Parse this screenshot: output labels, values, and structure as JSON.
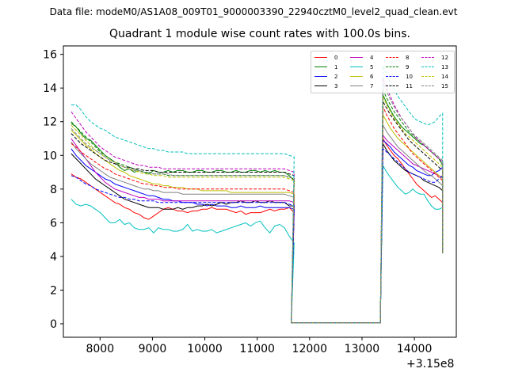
{
  "header": {
    "suptitle": "Data file: modeM0/AS1A08_009T01_9000003390_22940cztM0_level2_quad_clean.evt",
    "title": "Quadrant 1 module wise count rates with 100.0s bins."
  },
  "chart_data": {
    "type": "line",
    "title": "Quadrant 1 module wise count rates with 100.0s bins.",
    "xlabel": "",
    "ylabel": "",
    "x_offset_label": "+3.15e8",
    "xlim": [
      7300,
      14800
    ],
    "ylim": [
      -0.8,
      16.5
    ],
    "xticks": [
      8000,
      9000,
      10000,
      11000,
      12000,
      13000,
      14000
    ],
    "yticks": [
      0,
      2,
      4,
      6,
      8,
      10,
      12,
      14,
      16
    ],
    "legend_position": "top-right",
    "series": [
      {
        "name": "0",
        "color": "#ff0000",
        "style": "solid",
        "seg1": [
          8.9,
          8.7,
          8.6,
          8.4,
          8.2,
          8.0,
          7.8,
          7.6,
          7.4,
          7.2,
          7.1,
          6.9,
          6.8,
          6.6,
          6.5,
          6.3,
          6.2,
          6.4,
          6.6,
          6.8,
          6.9,
          6.8,
          6.7,
          6.7,
          6.6,
          6.7,
          6.7,
          6.8,
          6.8,
          6.9,
          6.8,
          6.8,
          6.8,
          6.7,
          6.6,
          6.7,
          6.5,
          6.6,
          6.6,
          6.6,
          6.7,
          6.8,
          6.7,
          6.8,
          6.8,
          6.9,
          6.6
        ],
        "seg2": [
          11.0,
          10.6,
          10.3,
          10.0,
          9.8,
          9.5,
          9.2,
          8.9,
          8.6,
          8.3,
          8.1,
          7.9,
          7.7,
          7.5,
          7.6,
          7.4,
          7.2
        ]
      },
      {
        "name": "1",
        "color": "#008000",
        "style": "solid",
        "seg1": [
          11.9,
          11.7,
          11.3,
          11.0,
          10.9,
          10.6,
          10.3,
          10.0,
          9.8,
          9.6,
          9.3,
          9.1,
          9.2,
          9.0,
          9.1,
          9.0,
          8.9,
          9.1,
          9.0,
          9.0,
          9.1,
          9.0,
          9.1,
          9.1,
          9.0,
          9.0,
          9.1,
          9.1,
          9.0,
          9.0,
          9.1,
          9.1,
          9.0,
          9.0,
          9.1,
          9.0,
          9.0,
          9.1,
          9.1,
          9.0,
          9.1,
          9.0,
          9.1,
          9.0,
          9.0,
          8.8,
          8.5
        ],
        "seg2": [
          13.6,
          13.1,
          12.7,
          12.3,
          12.0,
          11.7,
          11.5,
          11.3,
          11.1,
          10.9,
          10.7,
          10.6,
          10.4,
          10.2,
          10.0,
          9.8,
          9.4
        ]
      },
      {
        "name": "2",
        "color": "#0000ff",
        "style": "solid",
        "seg1": [
          10.4,
          10.0,
          9.7,
          9.4,
          9.2,
          9.0,
          8.8,
          8.6,
          8.5,
          8.3,
          8.2,
          8.1,
          8.0,
          7.9,
          7.8,
          7.7,
          7.6,
          7.6,
          7.5,
          7.4,
          7.4,
          7.3,
          7.3,
          7.2,
          7.2,
          7.2,
          7.1,
          7.1,
          7.0,
          7.1,
          7.0,
          7.0,
          7.0,
          6.9,
          6.9,
          7.0,
          6.9,
          6.9,
          6.9,
          7.0,
          6.9,
          6.9,
          6.9,
          6.9,
          6.9,
          6.9,
          6.8
        ],
        "seg2": [
          10.9,
          10.7,
          10.5,
          10.2,
          10.0,
          9.8,
          9.6,
          9.4,
          9.3,
          9.1,
          9.0,
          8.9,
          8.8,
          8.8,
          9.0,
          9.1,
          9.3
        ]
      },
      {
        "name": "3",
        "color": "#000000",
        "style": "solid",
        "seg1": [
          10.1,
          9.8,
          9.5,
          9.2,
          8.9,
          8.6,
          8.4,
          8.2,
          8.0,
          7.8,
          7.6,
          7.4,
          7.3,
          7.2,
          7.1,
          7.0,
          6.9,
          6.9,
          6.9,
          6.8,
          6.8,
          6.8,
          6.9,
          6.8,
          6.9,
          6.9,
          7.0,
          7.0,
          7.1,
          7.0,
          7.1,
          7.2,
          7.1,
          7.2,
          7.2,
          7.3,
          7.2,
          7.2,
          7.3,
          7.2,
          7.2,
          7.3,
          7.2,
          7.2,
          7.2,
          7.0,
          7.0
        ],
        "seg2": [
          10.7,
          10.3,
          10.0,
          9.7,
          9.5,
          9.3,
          9.1,
          9.0,
          8.9,
          8.8,
          8.7,
          8.5,
          8.4,
          8.3,
          8.2,
          8.1,
          7.9
        ]
      },
      {
        "name": "4",
        "color": "#bf00bf",
        "style": "solid",
        "seg1": [
          11.0,
          10.6,
          10.2,
          9.8,
          9.4,
          9.0,
          8.7,
          8.4,
          8.2,
          8.0,
          7.9,
          7.8,
          7.7,
          7.6,
          7.5,
          7.5,
          7.4,
          7.4,
          7.4,
          7.3,
          7.3,
          7.3,
          7.3,
          7.3,
          7.3,
          7.3,
          7.3,
          7.3,
          7.3,
          7.3,
          7.3,
          7.3,
          7.3,
          7.3,
          7.3,
          7.3,
          7.3,
          7.3,
          7.3,
          7.3,
          7.3,
          7.3,
          7.3,
          7.3,
          7.3,
          7.3,
          7.2
        ],
        "seg2": [
          11.2,
          10.9,
          10.7,
          10.5,
          10.3,
          10.1,
          9.9,
          9.7,
          9.5,
          9.4,
          9.3,
          9.2,
          9.1,
          9.0,
          8.9,
          8.8,
          8.7
        ]
      },
      {
        "name": "5",
        "color": "#00bfbf",
        "style": "solid",
        "seg1": [
          7.4,
          7.1,
          7.0,
          7.1,
          7.0,
          6.8,
          6.6,
          6.3,
          6.0,
          6.0,
          6.2,
          5.9,
          6.0,
          5.7,
          5.6,
          5.6,
          5.7,
          5.4,
          5.7,
          5.6,
          5.6,
          5.5,
          5.5,
          5.6,
          5.9,
          5.5,
          5.6,
          5.5,
          5.5,
          5.6,
          5.4,
          5.5,
          5.6,
          5.7,
          5.8,
          5.9,
          6.0,
          5.8,
          6.0,
          6.1,
          5.7,
          5.4,
          5.8,
          5.9,
          5.7,
          5.2,
          4.8
        ],
        "seg2": [
          9.4,
          9.0,
          8.7,
          8.4,
          8.1,
          7.9,
          7.7,
          7.8,
          8.0,
          7.8,
          7.7,
          7.7,
          7.3,
          7.0,
          6.8,
          6.8,
          6.9
        ]
      },
      {
        "name": "6",
        "color": "#bfbf00",
        "style": "solid",
        "seg1": [
          11.5,
          11.2,
          10.9,
          10.6,
          10.4,
          10.1,
          9.9,
          9.7,
          9.5,
          9.3,
          9.1,
          9.0,
          8.8,
          8.7,
          8.6,
          8.5,
          8.4,
          8.3,
          8.3,
          8.2,
          8.2,
          8.1,
          8.1,
          8.1,
          8.0,
          8.0,
          8.0,
          7.9,
          7.9,
          7.9,
          7.9,
          7.9,
          7.9,
          7.8,
          7.8,
          7.8,
          7.8,
          7.8,
          7.8,
          7.8,
          7.8,
          7.8,
          7.8,
          7.8,
          7.8,
          7.8,
          7.7
        ],
        "seg2": [
          12.4,
          12.0,
          11.6,
          11.3,
          11.0,
          10.8,
          10.6,
          10.4,
          10.2,
          10.0,
          9.8,
          9.6,
          9.4,
          9.2,
          9.0,
          8.8,
          8.6
        ]
      },
      {
        "name": "7",
        "color": "#808080",
        "style": "solid",
        "seg1": [
          10.8,
          10.4,
          10.1,
          9.8,
          9.5,
          9.3,
          9.1,
          8.9,
          8.7,
          8.6,
          8.5,
          8.4,
          8.3,
          8.2,
          8.1,
          8.0,
          8.0,
          7.9,
          7.9,
          7.8,
          7.8,
          7.8,
          7.8,
          7.7,
          7.7,
          7.7,
          7.7,
          7.7,
          7.7,
          7.7,
          7.7,
          7.7,
          7.7,
          7.7,
          7.7,
          7.7,
          7.7,
          7.7,
          7.7,
          7.7,
          7.7,
          7.7,
          7.7,
          7.7,
          7.7,
          7.6,
          7.5
        ],
        "seg2": [
          11.8,
          11.4,
          11.1,
          10.8,
          10.5,
          10.3,
          10.1,
          9.9,
          9.7,
          9.5,
          9.3,
          9.1,
          8.9,
          8.8,
          8.6,
          8.4,
          8.2
        ]
      },
      {
        "name": "8",
        "color": "#ff0000",
        "style": "dashed",
        "seg1": [
          10.7,
          10.5,
          10.2,
          10.0,
          9.8,
          9.6,
          9.4,
          9.2,
          9.1,
          8.9,
          8.8,
          8.7,
          8.6,
          8.5,
          8.4,
          8.3,
          8.3,
          8.2,
          8.2,
          8.1,
          8.1,
          8.1,
          8.0,
          8.0,
          8.0,
          8.0,
          8.0,
          8.0,
          8.0,
          8.0,
          8.0,
          8.0,
          8.0,
          8.0,
          8.0,
          8.0,
          8.0,
          8.0,
          8.0,
          8.0,
          8.0,
          8.0,
          8.0,
          8.0,
          8.0,
          7.9,
          7.8
        ],
        "seg2": [
          12.9,
          12.4,
          12.0,
          11.6,
          11.3,
          11.0,
          10.7,
          10.4,
          10.1,
          9.9,
          9.7,
          9.5,
          9.3,
          9.1,
          8.9,
          8.7,
          8.5
        ]
      },
      {
        "name": "9",
        "color": "#008000",
        "style": "dashed",
        "seg1": [
          12.0,
          11.7,
          11.4,
          11.1,
          10.8,
          10.5,
          10.2,
          10.0,
          9.8,
          9.6,
          9.5,
          9.4,
          9.3,
          9.2,
          9.1,
          9.0,
          9.0,
          8.9,
          8.9,
          8.9,
          8.8,
          8.8,
          8.8,
          8.8,
          8.8,
          8.8,
          8.8,
          8.8,
          8.8,
          8.8,
          8.8,
          8.8,
          8.8,
          8.8,
          8.8,
          8.8,
          8.8,
          8.8,
          8.8,
          8.8,
          8.8,
          8.8,
          8.8,
          8.8,
          8.8,
          8.7,
          8.6
        ],
        "seg2": [
          13.9,
          13.4,
          13.0,
          12.6,
          12.3,
          12.0,
          11.7,
          11.4,
          11.2,
          11.0,
          10.8,
          10.6,
          10.4,
          10.2,
          10.0,
          9.8,
          9.6
        ]
      },
      {
        "name": "10",
        "color": "#0000ff",
        "style": "dashed",
        "seg1": [
          8.8,
          8.7,
          8.5,
          8.3,
          8.2,
          8.0,
          7.9,
          7.8,
          7.7,
          7.6,
          7.5,
          7.5,
          7.4,
          7.4,
          7.3,
          7.3,
          7.3,
          7.3,
          7.2,
          7.2,
          7.2,
          7.2,
          7.2,
          7.2,
          7.2,
          7.2,
          7.2,
          7.2,
          7.2,
          7.2,
          7.2,
          7.2,
          7.2,
          7.2,
          7.2,
          7.2,
          7.2,
          7.2,
          7.2,
          7.2,
          7.2,
          7.2,
          7.2,
          7.2,
          7.2,
          7.1,
          7.0
        ],
        "seg2": [
          10.4,
          10.2,
          10.0,
          9.8,
          9.6,
          9.4,
          9.2,
          9.0,
          8.9,
          8.8,
          8.7,
          8.6,
          8.5,
          8.4,
          8.4,
          8.6,
          8.8
        ]
      },
      {
        "name": "11",
        "color": "#000000",
        "style": "dashed",
        "seg1": [
          11.3,
          11.0,
          10.7,
          10.5,
          10.3,
          10.1,
          9.9,
          9.7,
          9.6,
          9.5,
          9.4,
          9.3,
          9.3,
          9.2,
          9.2,
          9.1,
          9.1,
          9.1,
          9.0,
          9.0,
          9.0,
          9.0,
          9.0,
          9.0,
          9.0,
          9.0,
          9.0,
          9.0,
          9.0,
          9.0,
          9.0,
          9.0,
          9.0,
          9.0,
          9.0,
          9.0,
          9.0,
          9.0,
          9.0,
          9.0,
          9.0,
          9.0,
          9.0,
          9.0,
          9.0,
          8.9,
          8.8
        ],
        "seg2": [
          13.2,
          12.8,
          12.4,
          12.1,
          11.8,
          11.5,
          11.2,
          10.9,
          10.7,
          10.5,
          10.3,
          10.1,
          9.9,
          9.7,
          9.5,
          9.3,
          9.1
        ]
      },
      {
        "name": "12",
        "color": "#bf00bf",
        "style": "dashed",
        "seg1": [
          12.6,
          12.2,
          11.8,
          11.4,
          11.1,
          10.8,
          10.5,
          10.3,
          10.1,
          9.9,
          9.8,
          9.7,
          9.6,
          9.5,
          9.4,
          9.4,
          9.3,
          9.3,
          9.3,
          9.2,
          9.2,
          9.2,
          9.2,
          9.2,
          9.2,
          9.2,
          9.2,
          9.2,
          9.2,
          9.2,
          9.2,
          9.2,
          9.2,
          9.2,
          9.2,
          9.2,
          9.2,
          9.2,
          9.2,
          9.2,
          9.2,
          9.2,
          9.2,
          9.2,
          9.2,
          9.1,
          9.0
        ],
        "seg2": [
          14.6,
          14.0,
          13.5,
          13.0,
          12.6,
          12.2,
          11.9,
          11.6,
          11.3,
          11.0,
          10.8,
          10.6,
          10.4,
          10.2,
          10.0,
          9.8,
          9.6
        ]
      },
      {
        "name": "13",
        "color": "#00bfbf",
        "style": "dashed",
        "seg1": [
          13.0,
          13.0,
          12.7,
          12.3,
          12.0,
          11.8,
          11.6,
          11.5,
          11.3,
          11.1,
          11.0,
          10.9,
          10.8,
          10.7,
          10.6,
          10.5,
          10.4,
          10.4,
          10.3,
          10.3,
          10.2,
          10.2,
          10.2,
          10.2,
          10.1,
          10.1,
          10.1,
          10.1,
          10.1,
          10.1,
          10.1,
          10.1,
          10.1,
          10.1,
          10.1,
          10.1,
          10.1,
          10.1,
          10.1,
          10.1,
          10.1,
          10.1,
          10.1,
          10.1,
          10.1,
          10.0,
          9.9
        ],
        "seg2": [
          15.3,
          14.8,
          14.3,
          13.9,
          13.5,
          13.2,
          12.9,
          12.6,
          12.3,
          12.1,
          12.0,
          11.9,
          11.8,
          11.9,
          12.0,
          12.3,
          12.5
        ]
      },
      {
        "name": "14",
        "color": "#bfbf00",
        "style": "dashed",
        "seg1": [
          11.8,
          11.5,
          11.2,
          10.9,
          10.6,
          10.3,
          10.1,
          9.9,
          9.7,
          9.6,
          9.4,
          9.3,
          9.2,
          9.1,
          9.0,
          8.9,
          8.9,
          8.8,
          8.8,
          8.8,
          8.7,
          8.7,
          8.7,
          8.7,
          8.7,
          8.7,
          8.7,
          8.7,
          8.7,
          8.7,
          8.7,
          8.7,
          8.7,
          8.7,
          8.7,
          8.7,
          8.7,
          8.7,
          8.7,
          8.7,
          8.7,
          8.7,
          8.7,
          8.7,
          8.7,
          8.6,
          8.5
        ],
        "seg2": [
          13.5,
          13.0,
          12.6,
          12.2,
          11.9,
          11.6,
          11.3,
          11.1,
          10.9,
          10.7,
          10.5,
          10.3,
          10.1,
          9.9,
          9.7,
          9.5,
          9.3
        ]
      },
      {
        "name": "15",
        "color": "#808080",
        "style": "dashed",
        "seg1": [
          11.6,
          11.3,
          11.0,
          10.7,
          10.5,
          10.3,
          10.1,
          9.9,
          9.7,
          9.6,
          9.4,
          9.3,
          9.2,
          9.1,
          9.1,
          9.0,
          9.0,
          8.9,
          8.9,
          8.9,
          8.9,
          8.8,
          8.8,
          8.8,
          8.8,
          8.8,
          8.8,
          8.8,
          8.8,
          8.8,
          8.8,
          8.8,
          8.8,
          8.8,
          8.8,
          8.8,
          8.8,
          8.8,
          8.8,
          8.8,
          8.8,
          8.8,
          8.8,
          8.8,
          8.8,
          8.7,
          8.6
        ],
        "seg2": [
          14.3,
          13.8,
          13.3,
          12.9,
          12.5,
          12.2,
          11.9,
          11.6,
          11.3,
          11.1,
          10.9,
          10.7,
          10.5,
          10.3,
          10.1,
          9.9,
          9.7
        ]
      }
    ],
    "segment_times": {
      "seg1_start": 7450,
      "seg1_step": 92.5,
      "gap_start": 11650,
      "gap_end": 13350,
      "seg2_start": 13400,
      "seg2_step": 71.25,
      "final_drop_x": 14540,
      "final_drop_y": 4.2
    }
  }
}
